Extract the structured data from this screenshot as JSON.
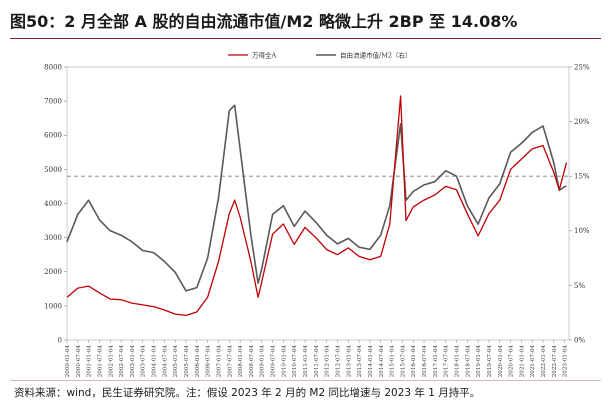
{
  "title": "图50：2 月全部 A 股的自由流通市值/M2 略微上升 2BP 至 14.08%",
  "source": "资料来源：wind，民生证券研究院。注：假设 2023 年 2 月的 M2 同比增速与 2023 年 1 月持平。",
  "chart_data": {
    "type": "line",
    "legend": {
      "placement": "top-center",
      "entries": [
        "万得全A",
        "自由流通市值/M2（右）"
      ]
    },
    "x": [
      "2000-01",
      "2000-07",
      "2001-01",
      "2001-07",
      "2002-01",
      "2002-07",
      "2003-01",
      "2003-07",
      "2004-01",
      "2004-07",
      "2005-01",
      "2005-07",
      "2006-01",
      "2006-07",
      "2007-01",
      "2007-07",
      "2007-10",
      "2008-01",
      "2008-07",
      "2008-11",
      "2009-01",
      "2009-07",
      "2010-01",
      "2010-07",
      "2011-01",
      "2011-07",
      "2012-01",
      "2012-07",
      "2013-01",
      "2013-07",
      "2014-01",
      "2014-07",
      "2014-12",
      "2015-06",
      "2015-09",
      "2016-01",
      "2016-07",
      "2017-01",
      "2017-07",
      "2018-01",
      "2018-07",
      "2019-01",
      "2019-07",
      "2020-01",
      "2020-07",
      "2021-01",
      "2021-07",
      "2022-01",
      "2022-07",
      "2022-10",
      "2023-01",
      "2023-02"
    ],
    "series": [
      {
        "name": "万得全A",
        "axis": "left",
        "color": "#c00000",
        "values": [
          1250,
          1520,
          1580,
          1380,
          1200,
          1180,
          1080,
          1030,
          980,
          880,
          760,
          720,
          820,
          1250,
          2300,
          3700,
          4100,
          3600,
          2300,
          1250,
          1700,
          3100,
          3400,
          2800,
          3300,
          3000,
          2650,
          2500,
          2700,
          2450,
          2350,
          2450,
          3400,
          7150,
          3500,
          3900,
          4100,
          4250,
          4500,
          4400,
          3700,
          3050,
          3700,
          4100,
          5000,
          5300,
          5600,
          5700,
          4900,
          4400,
          5000,
          5200
        ]
      },
      {
        "name": "自由流通市值/M2（右）",
        "axis": "right",
        "color": "#595959",
        "values": [
          9.0,
          11.5,
          12.8,
          11.0,
          10.0,
          9.6,
          9.0,
          8.2,
          8.0,
          7.2,
          6.2,
          4.5,
          4.8,
          7.5,
          13.0,
          21.0,
          21.5,
          17.5,
          9.6,
          5.2,
          6.5,
          11.5,
          12.3,
          10.4,
          11.8,
          10.8,
          9.6,
          8.8,
          9.3,
          8.5,
          8.3,
          9.6,
          12.3,
          19.8,
          12.8,
          13.6,
          14.2,
          14.5,
          15.5,
          15.0,
          12.3,
          10.6,
          13.0,
          14.3,
          17.2,
          18.0,
          19.0,
          19.6,
          16.2,
          13.7,
          14.06,
          14.08
        ]
      }
    ],
    "reference_line": {
      "axis": "left",
      "value": 4800,
      "style": "dashed"
    },
    "x_tick_labels": [
      "2000-01-04",
      "2000-07-04",
      "2001-01-04",
      "2001-07-04",
      "2002-01-04",
      "2002-07-04",
      "2003-01-04",
      "2003-07-04",
      "2004-01-04",
      "2004-07-04",
      "2005-01-04",
      "2005-07-04",
      "2006-01-04",
      "2006-07-04",
      "2007-01-04",
      "2007-07-04",
      "2008-01-04",
      "2008-07-04",
      "2009-01-04",
      "2009-07-04",
      "2010-01-04",
      "2010-07-04",
      "2011-01-04",
      "2011-07-04",
      "2012-01-04",
      "2012-07-04",
      "2013-01-04",
      "2013-07-04",
      "2014-01-04",
      "2014-07-04",
      "2015-01-04",
      "2015-07-04",
      "2016-01-04",
      "2016-07-04",
      "2017-01-04",
      "2017-07-04",
      "2018-01-04",
      "2018-07-04",
      "2019-01-04",
      "2019-07-04",
      "2020-01-04",
      "2020-07-04",
      "2021-01-04",
      "2021-07-04",
      "2022-01-04",
      "2022-07-04",
      "2023-01-04"
    ],
    "y_left": {
      "ticks": [
        "0",
        "1000",
        "2000",
        "3000",
        "4000",
        "5000",
        "6000",
        "7000",
        "8000"
      ],
      "range": [
        0,
        8000
      ]
    },
    "y_right": {
      "ticks": [
        "0%",
        "5%",
        "10%",
        "15%",
        "20%",
        "25%"
      ],
      "range": [
        0,
        25
      ]
    },
    "grid": false
  }
}
